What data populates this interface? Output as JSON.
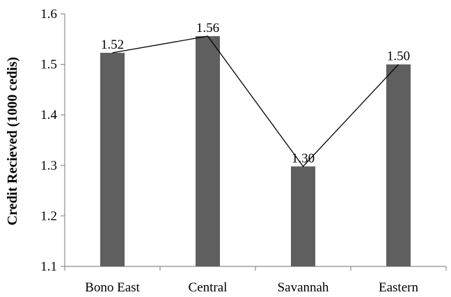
{
  "chart_data": {
    "type": "bar",
    "ylabel": "Credit Recieved (1000 cedis)",
    "xlabel": "",
    "categories": [
      "Bono East",
      "Central",
      "Savannah",
      "Eastern"
    ],
    "values": [
      1.523,
      1.556,
      1.298,
      1.5
    ],
    "data_labels": [
      "1.52",
      "1.56",
      "1.30",
      "1.50"
    ],
    "overlay_line": true,
    "ylim": [
      1.1,
      1.6
    ],
    "yticks": [
      "1.1",
      "1.2",
      "1.3",
      "1.4",
      "1.5",
      "1.6"
    ],
    "grid": false,
    "legend": "none",
    "colors": {
      "bar": "#5f5f5f",
      "line": "#000000",
      "axis": "#8c8c8c"
    }
  }
}
